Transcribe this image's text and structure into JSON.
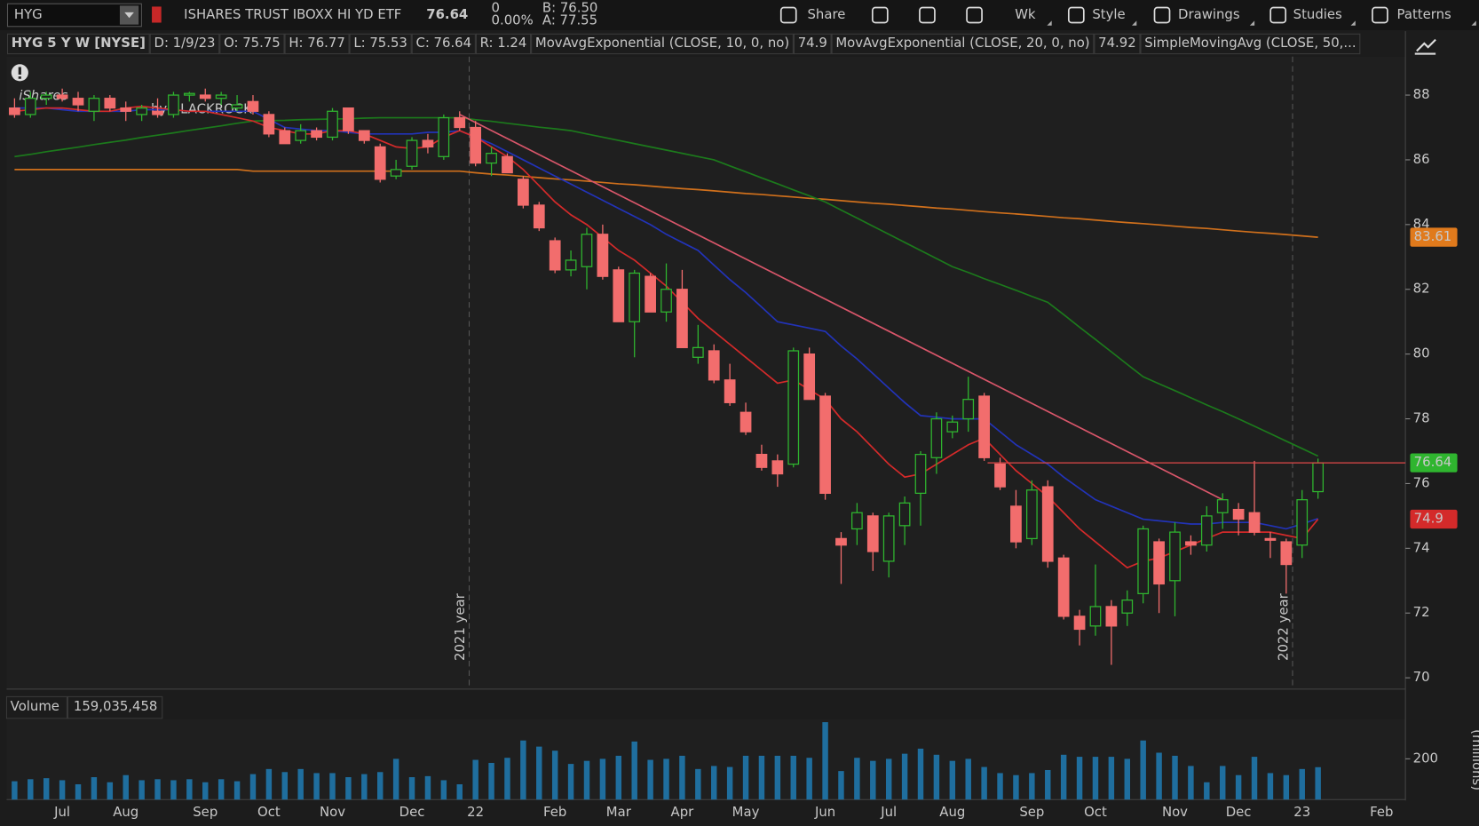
{
  "toolbar": {
    "symbol": "HYG",
    "description": "ISHARES TRUST IBOXX HI YD ETF",
    "last": "76.64",
    "change": "0",
    "change_pct": "0.00%",
    "bid": "B: 76.50",
    "ask": "A: 77.55",
    "buttons": [
      "Share",
      "Wk",
      "Style",
      "Drawings",
      "Studies",
      "Patterns"
    ]
  },
  "info_bar": {
    "symbol": "HYG 5 Y W [NYSE]",
    "fields": [
      "D: 1/9/23",
      "O: 75.75",
      "H: 76.77",
      "L: 75.53",
      "C: 76.64",
      "R: 1.24"
    ]
  },
  "chart_data": [
    {
      "type": "candlestick",
      "up_color": "#2fb52f",
      "down_color": "#f26d6d",
      "watermark": [
        "iShares",
        "by BLACKROCK"
      ],
      "open": [
        87.6,
        87.4,
        87.9,
        88.0,
        87.9,
        87.5,
        87.9,
        87.6,
        87.4,
        87.5,
        87.4,
        88.0,
        88.0,
        87.9,
        87.6,
        87.8,
        87.4,
        86.9,
        86.6,
        86.9,
        86.7,
        87.6,
        86.9,
        86.4,
        85.5,
        85.8,
        86.6,
        86.1,
        87.3,
        87.0,
        85.9,
        86.1,
        85.4,
        84.6,
        83.5,
        82.6,
        82.7,
        83.7,
        82.6,
        81.0,
        82.4,
        81.3,
        82.0,
        79.9,
        80.1,
        79.2,
        78.2,
        76.9,
        76.7,
        76.6,
        80.0,
        78.7,
        74.3,
        74.6,
        75.0,
        73.6,
        74.7,
        75.7,
        76.8,
        77.6,
        78.0,
        78.7,
        76.6,
        75.3,
        74.3,
        75.9,
        73.7,
        71.9,
        71.6,
        72.2,
        72.0,
        72.6,
        74.2,
        73.0,
        74.2,
        74.1,
        75.1,
        75.2,
        75.1,
        74.3,
        74.2,
        74.1,
        75.75,
        null,
        null,
        null,
        null,
        null
      ],
      "high": [
        87.9,
        88.1,
        88.1,
        88.2,
        88.1,
        88.0,
        88.0,
        87.8,
        87.7,
        87.9,
        88.1,
        88.1,
        88.2,
        88.1,
        88.0,
        88.0,
        87.5,
        87.0,
        87.1,
        87.0,
        87.6,
        87.6,
        86.9,
        86.5,
        86.0,
        86.7,
        86.8,
        87.4,
        87.5,
        87.2,
        86.4,
        86.2,
        85.5,
        84.7,
        83.6,
        83.2,
        83.9,
        84.0,
        82.7,
        82.6,
        82.5,
        82.8,
        82.6,
        80.9,
        80.3,
        79.7,
        78.5,
        77.2,
        76.9,
        80.2,
        80.2,
        78.8,
        74.5,
        75.4,
        75.1,
        75.1,
        75.6,
        77.0,
        78.2,
        78.1,
        79.3,
        78.8,
        76.8,
        75.8,
        76.1,
        76.1,
        73.8,
        72.1,
        73.5,
        72.4,
        72.7,
        74.7,
        74.3,
        74.8,
        74.4,
        75.3,
        75.7,
        75.4,
        76.7,
        74.5,
        74.3,
        75.8,
        76.77,
        null,
        null,
        null,
        null,
        null
      ],
      "low": [
        87.3,
        87.3,
        87.7,
        87.8,
        87.5,
        87.2,
        87.5,
        87.2,
        87.2,
        87.3,
        87.3,
        87.8,
        87.8,
        87.7,
        87.5,
        87.4,
        86.7,
        86.5,
        86.5,
        86.6,
        86.6,
        86.8,
        86.5,
        85.3,
        85.4,
        85.7,
        86.2,
        86.0,
        86.9,
        85.8,
        85.5,
        85.6,
        84.5,
        83.8,
        82.5,
        82.4,
        82.0,
        82.3,
        81.0,
        79.9,
        81.3,
        81.0,
        80.2,
        79.7,
        79.1,
        78.4,
        77.5,
        76.4,
        75.9,
        76.5,
        78.6,
        75.5,
        72.9,
        74.1,
        73.3,
        73.1,
        74.1,
        74.7,
        76.3,
        77.4,
        77.6,
        76.7,
        75.8,
        74.0,
        74.1,
        73.4,
        71.8,
        71.0,
        71.3,
        70.4,
        71.6,
        72.3,
        72.0,
        71.9,
        73.8,
        73.9,
        74.6,
        74.4,
        74.4,
        73.7,
        72.6,
        73.7,
        75.53,
        null,
        null,
        null,
        null,
        null
      ],
      "close": [
        87.4,
        87.9,
        88.0,
        87.9,
        87.7,
        87.9,
        87.6,
        87.5,
        87.6,
        87.4,
        88.0,
        88.05,
        87.9,
        88.0,
        87.7,
        87.5,
        86.8,
        86.5,
        86.9,
        86.7,
        87.5,
        86.9,
        86.6,
        85.4,
        85.7,
        86.6,
        86.4,
        87.3,
        87.0,
        85.9,
        86.2,
        85.6,
        84.6,
        83.9,
        82.6,
        82.9,
        83.7,
        82.4,
        81.0,
        82.5,
        81.3,
        82.0,
        80.2,
        80.2,
        79.2,
        78.5,
        77.6,
        76.5,
        76.3,
        80.1,
        78.6,
        75.7,
        74.1,
        75.1,
        73.9,
        75.0,
        75.4,
        76.9,
        78.0,
        77.9,
        78.6,
        76.8,
        75.9,
        74.2,
        75.8,
        73.6,
        71.9,
        71.5,
        72.2,
        71.6,
        72.4,
        74.6,
        72.9,
        74.5,
        74.1,
        75.0,
        75.5,
        74.9,
        74.5,
        74.25,
        73.5,
        75.5,
        76.64,
        null,
        null,
        null,
        null,
        null
      ],
      "series": [
        {
          "name": "MovAvgExponential (CLOSE, 10, 0, no)",
          "color": "#d42a2a",
          "label_fill": "#d42a2a",
          "values": [
            87.5,
            87.55,
            87.6,
            87.6,
            87.55,
            87.5,
            87.5,
            87.6,
            87.65,
            87.6,
            87.55,
            87.5,
            87.5,
            87.4,
            87.3,
            87.2,
            87.0,
            86.9,
            86.8,
            86.8,
            86.9,
            86.9,
            86.8,
            86.6,
            86.4,
            86.35,
            86.4,
            86.7,
            86.9,
            86.7,
            86.4,
            86.1,
            85.7,
            85.2,
            84.7,
            84.3,
            84.0,
            83.6,
            83.2,
            82.9,
            82.5,
            82.1,
            81.6,
            81.1,
            80.7,
            80.3,
            79.9,
            79.5,
            79.1,
            79.2,
            78.9,
            78.6,
            78.0,
            77.6,
            77.1,
            76.6,
            76.2,
            76.3,
            76.6,
            76.9,
            77.2,
            77.4,
            76.9,
            76.4,
            76.0,
            75.6,
            75.1,
            74.6,
            74.2,
            73.8,
            73.4,
            73.6,
            73.7,
            73.9,
            74.1,
            74.3,
            74.5,
            74.5,
            74.5,
            74.5,
            74.4,
            74.3,
            74.9,
            null,
            null,
            null,
            null,
            null
          ]
        },
        {
          "name": "MovAvgExponential (CLOSE, 20, 0, no)",
          "color": "#2233b8",
          "values": [
            87.6,
            87.6,
            87.6,
            87.55,
            87.5,
            87.5,
            87.5,
            87.5,
            87.55,
            87.55,
            87.55,
            87.5,
            87.5,
            87.5,
            87.5,
            87.5,
            87.25,
            87.0,
            86.95,
            86.9,
            86.9,
            86.85,
            86.8,
            86.8,
            86.8,
            86.8,
            86.85,
            86.85,
            86.9,
            86.7,
            86.5,
            86.25,
            86.0,
            85.75,
            85.5,
            85.25,
            85.0,
            84.75,
            84.5,
            84.25,
            84.0,
            83.7,
            83.45,
            83.2,
            82.75,
            82.3,
            81.9,
            81.45,
            81.0,
            80.9,
            80.8,
            80.7,
            80.25,
            79.85,
            79.4,
            78.95,
            78.5,
            78.1,
            78.05,
            78.0,
            78.0,
            78.0,
            77.6,
            77.2,
            76.9,
            76.6,
            76.2,
            75.85,
            75.5,
            75.3,
            75.1,
            74.9,
            74.85,
            74.8,
            74.75,
            74.75,
            74.8,
            74.8,
            74.8,
            74.7,
            74.6,
            74.75,
            74.92,
            null,
            null,
            null,
            null,
            null
          ]
        },
        {
          "name": "SimpleMovingAvg (CLOSE, 50,...",
          "color": "#1c7a1c",
          "values": [
            86.1,
            86.17,
            86.25,
            86.32,
            86.39,
            86.47,
            86.54,
            86.61,
            86.69,
            86.76,
            86.83,
            86.91,
            86.98,
            87.05,
            87.13,
            87.2,
            87.21,
            87.22,
            87.24,
            87.25,
            87.26,
            87.27,
            87.29,
            87.3,
            87.3,
            87.3,
            87.3,
            87.3,
            87.3,
            87.24,
            87.19,
            87.13,
            87.07,
            87.01,
            86.96,
            86.9,
            86.8,
            86.7,
            86.6,
            86.5,
            86.4,
            86.3,
            86.2,
            86.1,
            86.0,
            85.81,
            85.63,
            85.44,
            85.26,
            85.07,
            84.89,
            84.7,
            84.45,
            84.2,
            83.95,
            83.7,
            83.45,
            83.2,
            82.95,
            82.7,
            82.52,
            82.33,
            82.15,
            81.97,
            81.78,
            81.6,
            81.22,
            80.83,
            80.45,
            80.07,
            79.68,
            79.3,
            79.08,
            78.87,
            78.65,
            78.43,
            78.22,
            78.0,
            77.77,
            77.54,
            77.31,
            77.08,
            76.85,
            null,
            null,
            null,
            null,
            null
          ]
        },
        {
          "color": "#d0701c",
          "label_fill": "#e07a1c",
          "values": [
            85.7,
            85.7,
            85.7,
            85.7,
            85.7,
            85.7,
            85.7,
            85.7,
            85.7,
            85.7,
            85.7,
            85.7,
            85.7,
            85.7,
            85.7,
            85.65,
            85.65,
            85.65,
            85.65,
            85.65,
            85.65,
            85.65,
            85.65,
            85.65,
            85.65,
            85.65,
            85.65,
            85.65,
            85.65,
            85.6,
            85.56,
            85.53,
            85.49,
            85.45,
            85.41,
            85.38,
            85.34,
            85.3,
            85.26,
            85.23,
            85.19,
            85.15,
            85.11,
            85.08,
            85.04,
            85.0,
            84.96,
            84.93,
            84.89,
            84.85,
            84.81,
            84.78,
            84.74,
            84.7,
            84.66,
            84.63,
            84.59,
            84.55,
            84.51,
            84.48,
            84.44,
            84.4,
            84.36,
            84.33,
            84.29,
            84.25,
            84.21,
            84.18,
            84.14,
            84.1,
            84.06,
            84.03,
            83.99,
            83.95,
            83.91,
            83.88,
            83.84,
            83.8,
            83.76,
            83.73,
            83.69,
            83.65,
            83.61,
            null,
            null,
            null,
            null,
            null
          ]
        }
      ],
      "price_line_color": "#e04848",
      "last_label_fill": "#2fb52f",
      "trendline": {
        "color": "#d8566a",
        "start": [
          28,
          87.4
        ],
        "end": [
          76,
          75.5
        ]
      },
      "year_markers": [
        {
          "label": "2021 year",
          "at": 28.6
        },
        {
          "label": "2022 year",
          "at": 80.4
        }
      ],
      "ylim": [
        69.65,
        89.1
      ],
      "yticks": [
        70,
        72,
        74,
        76,
        78,
        80,
        82,
        84,
        86,
        88
      ],
      "grid": false
    },
    {
      "type": "bar",
      "title": "Volume",
      "last_value_label": "159,035,458",
      "color": "#1f6e9e",
      "ylabel": "(millions)",
      "categories": [
        null,
        null,
        null,
        "Jul",
        null,
        null,
        null,
        "Aug",
        null,
        null,
        null,
        null,
        "Sep",
        null,
        null,
        null,
        "Oct",
        null,
        null,
        null,
        "Nov",
        null,
        null,
        null,
        null,
        "Dec",
        null,
        null,
        null,
        "22",
        null,
        null,
        null,
        null,
        "Feb",
        null,
        null,
        null,
        "Mar",
        null,
        null,
        null,
        "Apr",
        null,
        null,
        null,
        "May",
        null,
        null,
        null,
        null,
        "Jun",
        null,
        null,
        null,
        "Jul",
        null,
        null,
        null,
        "Aug",
        null,
        null,
        null,
        null,
        "Sep",
        null,
        null,
        null,
        "Oct",
        null,
        null,
        null,
        null,
        "Nov",
        null,
        null,
        null,
        "Dec",
        null,
        null,
        null,
        "23",
        null,
        null,
        null,
        null,
        "Feb",
        null
      ],
      "values": [
        90,
        100,
        105,
        95,
        75,
        110,
        85,
        120,
        95,
        100,
        95,
        100,
        85,
        100,
        90,
        125,
        150,
        135,
        150,
        130,
        130,
        110,
        125,
        135,
        200,
        110,
        115,
        95,
        75,
        195,
        180,
        205,
        290,
        260,
        240,
        175,
        190,
        200,
        215,
        285,
        195,
        200,
        215,
        150,
        165,
        160,
        215,
        215,
        215,
        215,
        205,
        380,
        140,
        205,
        190,
        200,
        225,
        250,
        220,
        190,
        200,
        160,
        130,
        120,
        130,
        145,
        220,
        210,
        210,
        210,
        200,
        290,
        230,
        215,
        165,
        85,
        165,
        120,
        210,
        130,
        120,
        150,
        159.035458,
        null,
        null,
        null,
        null,
        null
      ],
      "ylim": [
        0,
        380
      ],
      "yticks": [
        200
      ],
      "grid": false
    }
  ]
}
